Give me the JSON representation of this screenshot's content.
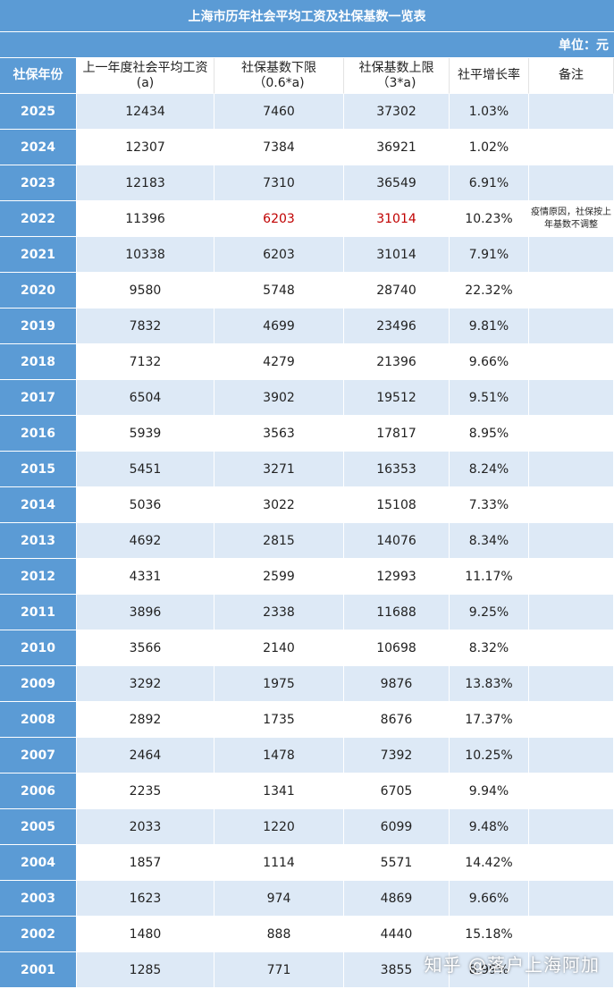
{
  "title": "上海市历年社会平均工资及社保基数一览表",
  "unit": "单位：元",
  "headers": {
    "year": "社保年份",
    "salary_l1": "上一年度社会平均工资",
    "salary_l2": "(a)",
    "lower_l1": "社保基数下限",
    "lower_l2": "（0.6*a)",
    "upper_l1": "社保基数上限",
    "upper_l2": "（3*a)",
    "growth": "社平增长率",
    "note": "备注"
  },
  "rows": [
    {
      "year": "2025",
      "salary": "12434",
      "lower": "7460",
      "upper": "37302",
      "growth": "1.03%",
      "note": ""
    },
    {
      "year": "2024",
      "salary": "12307",
      "lower": "7384",
      "upper": "36921",
      "growth": "1.02%",
      "note": ""
    },
    {
      "year": "2023",
      "salary": "12183",
      "lower": "7310",
      "upper": "36549",
      "growth": "6.91%",
      "note": ""
    },
    {
      "year": "2022",
      "salary": "11396",
      "lower": "6203",
      "upper": "31014",
      "growth": "10.23%",
      "note": "疫情原因，社保按上年基数不调整"
    },
    {
      "year": "2021",
      "salary": "10338",
      "lower": "6203",
      "upper": "31014",
      "growth": "7.91%",
      "note": ""
    },
    {
      "year": "2020",
      "salary": "9580",
      "lower": "5748",
      "upper": "28740",
      "growth": "22.32%",
      "note": ""
    },
    {
      "year": "2019",
      "salary": "7832",
      "lower": "4699",
      "upper": "23496",
      "growth": "9.81%",
      "note": ""
    },
    {
      "year": "2018",
      "salary": "7132",
      "lower": "4279",
      "upper": "21396",
      "growth": "9.66%",
      "note": ""
    },
    {
      "year": "2017",
      "salary": "6504",
      "lower": "3902",
      "upper": "19512",
      "growth": "9.51%",
      "note": ""
    },
    {
      "year": "2016",
      "salary": "5939",
      "lower": "3563",
      "upper": "17817",
      "growth": "8.95%",
      "note": ""
    },
    {
      "year": "2015",
      "salary": "5451",
      "lower": "3271",
      "upper": "16353",
      "growth": "8.24%",
      "note": ""
    },
    {
      "year": "2014",
      "salary": "5036",
      "lower": "3022",
      "upper": "15108",
      "growth": "7.33%",
      "note": ""
    },
    {
      "year": "2013",
      "salary": "4692",
      "lower": "2815",
      "upper": "14076",
      "growth": "8.34%",
      "note": ""
    },
    {
      "year": "2012",
      "salary": "4331",
      "lower": "2599",
      "upper": "12993",
      "growth": "11.17%",
      "note": ""
    },
    {
      "year": "2011",
      "salary": "3896",
      "lower": "2338",
      "upper": "11688",
      "growth": "9.25%",
      "note": ""
    },
    {
      "year": "2010",
      "salary": "3566",
      "lower": "2140",
      "upper": "10698",
      "growth": "8.32%",
      "note": ""
    },
    {
      "year": "2009",
      "salary": "3292",
      "lower": "1975",
      "upper": "9876",
      "growth": "13.83%",
      "note": ""
    },
    {
      "year": "2008",
      "salary": "2892",
      "lower": "1735",
      "upper": "8676",
      "growth": "17.37%",
      "note": ""
    },
    {
      "year": "2007",
      "salary": "2464",
      "lower": "1478",
      "upper": "7392",
      "growth": "10.25%",
      "note": ""
    },
    {
      "year": "2006",
      "salary": "2235",
      "lower": "1341",
      "upper": "6705",
      "growth": "9.94%",
      "note": ""
    },
    {
      "year": "2005",
      "salary": "2033",
      "lower": "1220",
      "upper": "6099",
      "growth": "9.48%",
      "note": ""
    },
    {
      "year": "2004",
      "salary": "1857",
      "lower": "1114",
      "upper": "5571",
      "growth": "14.42%",
      "note": ""
    },
    {
      "year": "2003",
      "salary": "1623",
      "lower": "974",
      "upper": "4869",
      "growth": "9.66%",
      "note": ""
    },
    {
      "year": "2002",
      "salary": "1480",
      "lower": "888",
      "upper": "4440",
      "growth": "15.18%",
      "note": ""
    },
    {
      "year": "2001",
      "salary": "1285",
      "lower": "771",
      "upper": "3855",
      "growth": "8.99%",
      "note": ""
    }
  ],
  "highlight_color": "#c00000",
  "watermark": "知乎 @落户上海阿加"
}
